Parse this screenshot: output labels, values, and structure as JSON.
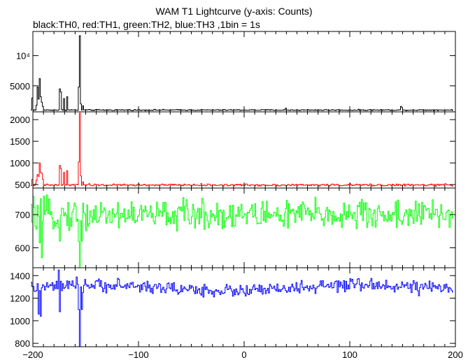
{
  "title": "WAM T1 Lightcurve (y-axis: Counts)",
  "subtitle": "black:TH0, red:TH1, green:TH2, blue:TH3 ,1bin = 1s",
  "chart_data": [
    {
      "type": "line",
      "series_name": "TH0",
      "color": "#000000",
      "xlim": [
        -200,
        200
      ],
      "ylim": [
        700,
        14000
      ],
      "yticks": [
        {
          "v": 5000,
          "label": "5000"
        },
        {
          "v": 10000,
          "label": "10⁴"
        }
      ],
      "baseline": 1000,
      "noise": 60,
      "spikes": [
        [
          -201,
          3000
        ],
        [
          -197,
          1800
        ],
        [
          -196,
          4800
        ],
        [
          -195,
          2800
        ],
        [
          -194,
          6200
        ],
        [
          -193,
          3200
        ],
        [
          -192,
          2300
        ],
        [
          -191,
          1600
        ],
        [
          -175,
          4500
        ],
        [
          -174,
          4000
        ],
        [
          -171,
          2900
        ],
        [
          -168,
          3200
        ],
        [
          -157,
          4800
        ],
        [
          -156,
          13300
        ],
        [
          -155,
          2000
        ],
        [
          -153,
          1700
        ],
        [
          39,
          1300
        ],
        [
          148,
          1600
        ],
        [
          149,
          1400
        ]
      ],
      "dips": []
    },
    {
      "type": "line",
      "series_name": "TH1",
      "color": "#ff0000",
      "xlim": [
        -200,
        200
      ],
      "ylim": [
        420,
        2180
      ],
      "yticks": [
        {
          "v": 500,
          "label": "500"
        },
        {
          "v": 1000,
          "label": "1000"
        },
        {
          "v": 1500,
          "label": "1500"
        },
        {
          "v": 2000,
          "label": "2000"
        }
      ],
      "baseline": 490,
      "noise": 15,
      "spikes": [
        [
          -201,
          620
        ],
        [
          -197,
          600
        ],
        [
          -196,
          730
        ],
        [
          -195,
          690
        ],
        [
          -194,
          1000
        ],
        [
          -193,
          780
        ],
        [
          -192,
          760
        ],
        [
          -191,
          620
        ],
        [
          -175,
          940
        ],
        [
          -174,
          870
        ],
        [
          -171,
          780
        ],
        [
          -168,
          820
        ],
        [
          -157,
          1020
        ],
        [
          -156,
          2150
        ],
        [
          -155,
          700
        ],
        [
          -153,
          560
        ]
      ],
      "dips": []
    },
    {
      "type": "line",
      "series_name": "TH2",
      "color": "#00ff00",
      "xlim": [
        -200,
        200
      ],
      "ylim": [
        540,
        780
      ],
      "yticks": [
        {
          "v": 600,
          "label": "600"
        },
        {
          "v": 700,
          "label": "700"
        }
      ],
      "baseline": 700,
      "noise": 28,
      "spikes": [],
      "dips": [
        [
          -194,
          615
        ],
        [
          -192,
          570
        ],
        [
          -175,
          620
        ],
        [
          -157,
          620
        ],
        [
          -156,
          540
        ],
        [
          -154,
          620
        ]
      ]
    },
    {
      "type": "line",
      "series_name": "TH3",
      "color": "#0000ff",
      "xlim": [
        -200,
        200
      ],
      "ylim": [
        770,
        1470
      ],
      "yticks": [
        {
          "v": 800,
          "label": "800"
        },
        {
          "v": 1000,
          "label": "1000"
        },
        {
          "v": 1200,
          "label": "1200"
        },
        {
          "v": 1400,
          "label": "1400"
        }
      ],
      "baseline": 1290,
      "noise": 35,
      "spikes": [
        [
          -176,
          1450
        ]
      ],
      "dips": [
        [
          -195,
          1060
        ],
        [
          -193,
          1040
        ],
        [
          -175,
          1080
        ],
        [
          -157,
          1100
        ],
        [
          -156,
          770
        ],
        [
          -154,
          1100
        ]
      ]
    }
  ],
  "x_axis": {
    "ticks": [
      {
        "v": -200,
        "label": "−200"
      },
      {
        "v": -100,
        "label": "−100"
      },
      {
        "v": 0,
        "label": "0"
      },
      {
        "v": 100,
        "label": "100"
      },
      {
        "v": 200,
        "label": "200"
      }
    ],
    "minor_step": 10
  }
}
